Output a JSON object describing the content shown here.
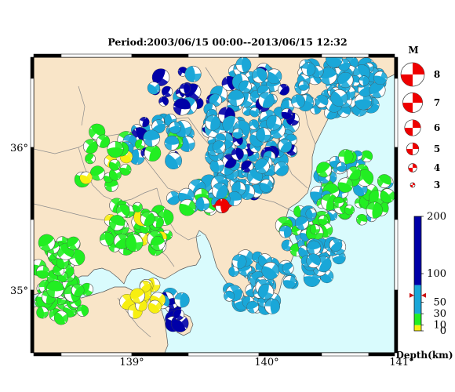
{
  "title": "Period:2003/06/15 00:00--2013/06/15 12:32",
  "map": {
    "lon_labels": [
      {
        "text": "139°",
        "value": 139
      },
      {
        "text": "140°",
        "value": 140
      },
      {
        "text": "141°",
        "value": 141
      }
    ],
    "lat_labels": [
      {
        "text": "36°",
        "value": 36
      },
      {
        "text": "35°",
        "value": 35
      }
    ],
    "colors": {
      "land": "#f9e5c8",
      "sea": "#d9fbfd",
      "border_line": "#8c8c8c",
      "coast_line": "#555555"
    }
  },
  "magnitude_legend": {
    "header": "M",
    "entries": [
      {
        "label": "8",
        "value": 8
      },
      {
        "label": "7",
        "value": 7
      },
      {
        "label": "6",
        "value": 6
      },
      {
        "label": "5",
        "value": 5
      },
      {
        "label": "4",
        "value": 4
      },
      {
        "label": "3",
        "value": 3
      }
    ],
    "color": "#ee0000"
  },
  "depth_scale": {
    "title": "Depth(km)",
    "ticks": [
      {
        "label": "200",
        "value": 200
      },
      {
        "label": "100",
        "value": 100
      },
      {
        "label": "50",
        "value": 50
      },
      {
        "label": "30",
        "value": 30
      },
      {
        "label": "10",
        "value": 10
      },
      {
        "label": "0",
        "value": 0
      }
    ],
    "bands": [
      {
        "from": 0,
        "to": 10,
        "color": "#f7ef10"
      },
      {
        "from": 10,
        "to": 30,
        "color": "#22ee22"
      },
      {
        "from": 30,
        "to": 80,
        "color": "#1aa7d8"
      },
      {
        "from": 80,
        "to": 200,
        "color": "#0000a8"
      }
    ],
    "marker_depth": 62,
    "marker_color": "#cc1111"
  },
  "highlight_event": {
    "lon": 139.67,
    "lat": 35.59,
    "color": "#ee0000",
    "magnitude": 5
  }
}
